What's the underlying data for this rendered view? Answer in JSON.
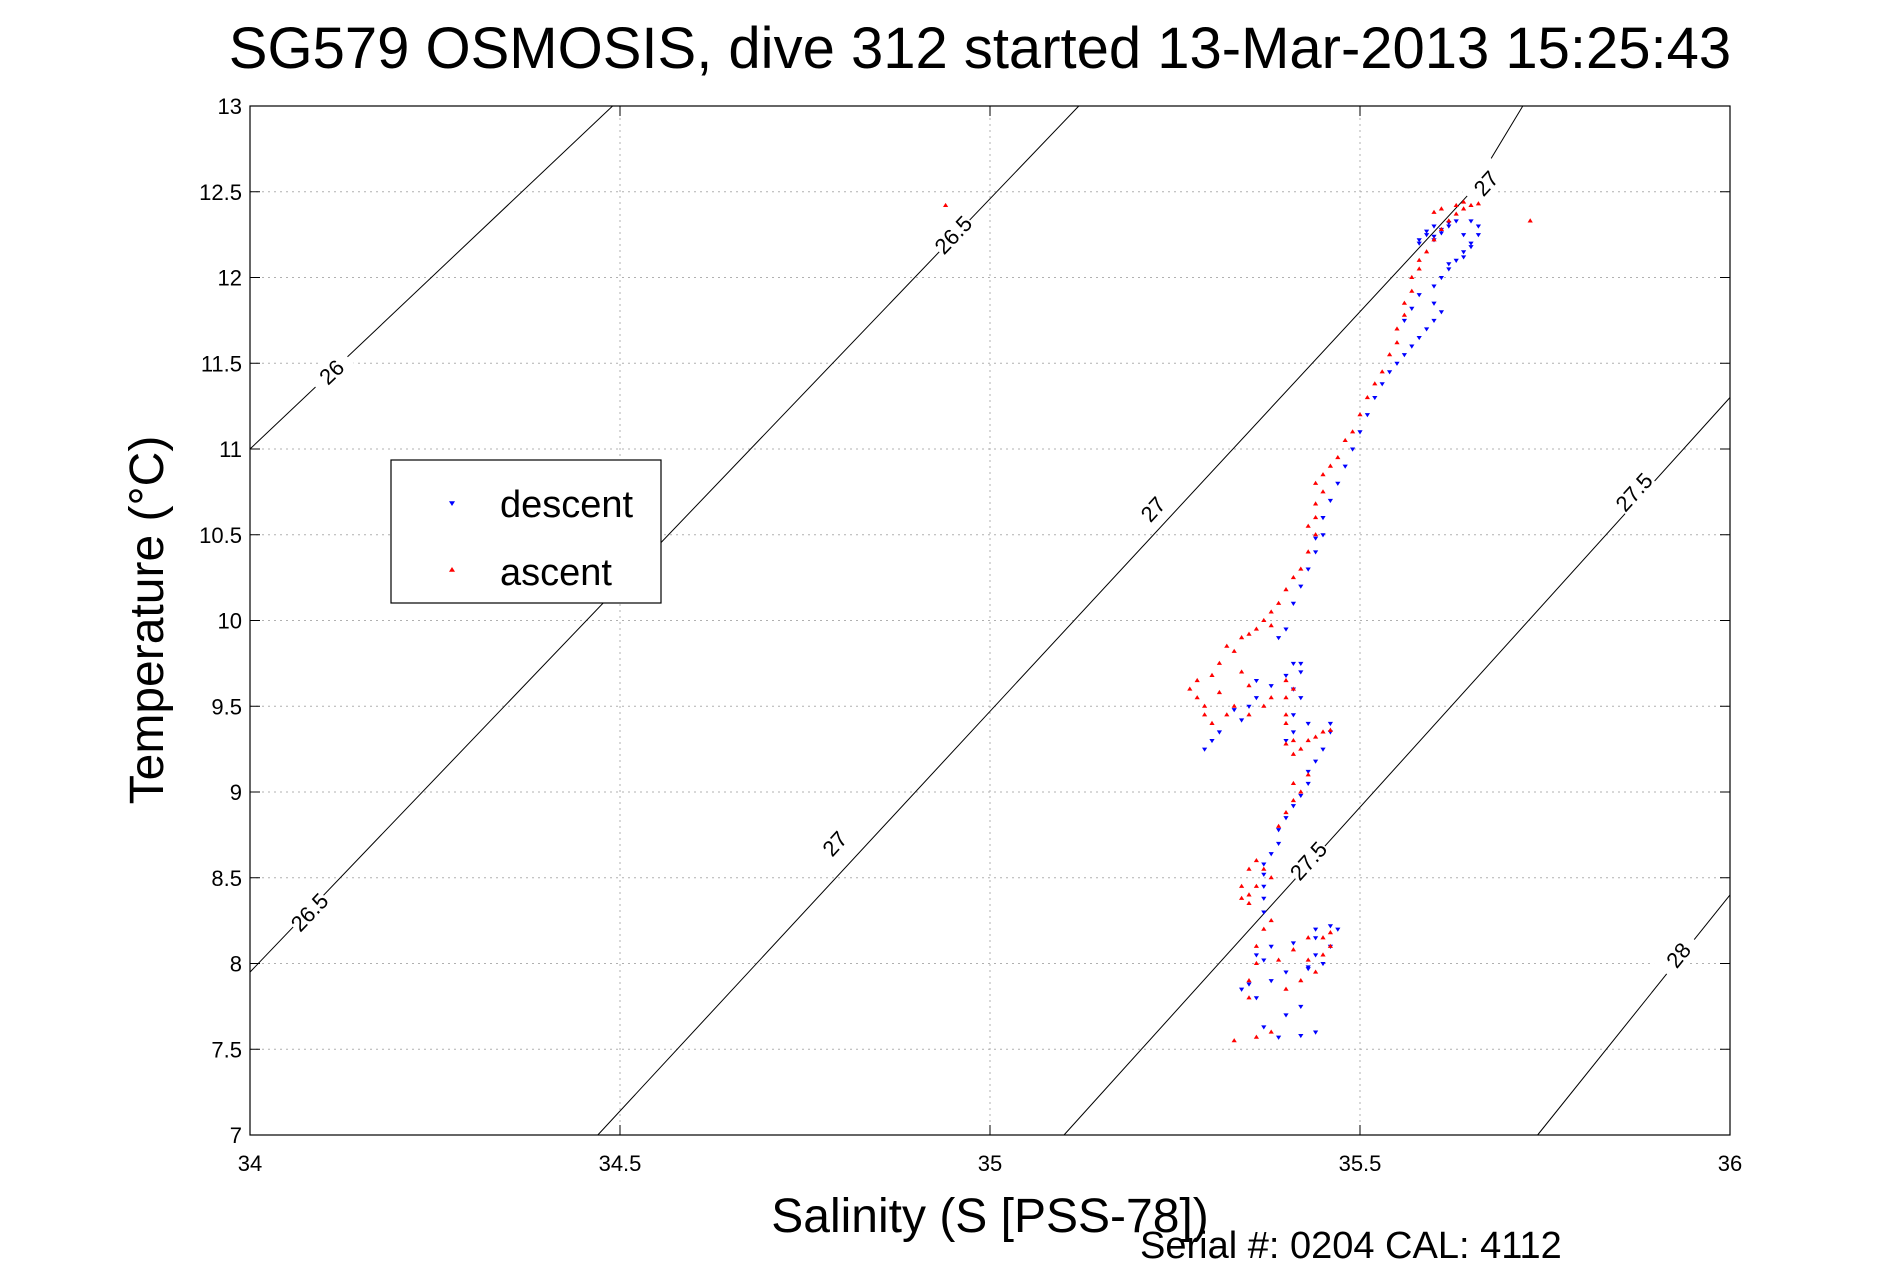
{
  "colors": {
    "descent": "#0000ff",
    "ascent": "#ff0000",
    "contour": "#000000",
    "grid": "#b0b0b0"
  },
  "footer": {
    "serial_text": "Serial #: 0204  CAL: 4112"
  },
  "chart_data": {
    "type": "scatter",
    "title": "SG579 OSMOSIS, dive 312 started 13-Mar-2013 15:25:43",
    "xlabel": "Salinity (S [PSS-78])",
    "ylabel": "Temperature (°C)",
    "xlim": [
      34,
      36
    ],
    "ylim": [
      7,
      13
    ],
    "xticks": [
      34,
      34.5,
      35,
      35.5,
      36
    ],
    "xtick_labels": [
      "34",
      "34.5",
      "35",
      "35.5",
      "36"
    ],
    "yticks": [
      7,
      7.5,
      8,
      8.5,
      9,
      9.5,
      10,
      10.5,
      11,
      11.5,
      12,
      12.5,
      13
    ],
    "ytick_labels": [
      "7",
      "7.5",
      "8",
      "8.5",
      "9",
      "9.5",
      "10",
      "10.5",
      "11",
      "11.5",
      "12",
      "12.5",
      "13"
    ],
    "grid": true,
    "legend_position": "center-left",
    "density_contours": [
      {
        "sigma": 26,
        "points": [
          [
            34,
            11.0
          ],
          [
            34.49,
            13.0
          ]
        ],
        "labels": [
          {
            "text": "26",
            "at": [
              34.11,
              11.45
            ]
          }
        ]
      },
      {
        "sigma": 26.5,
        "points": [
          [
            34,
            7.95
          ],
          [
            35.12,
            13.0
          ]
        ],
        "labels": [
          {
            "text": "26.5",
            "at": [
              34.08,
              8.3
            ]
          },
          {
            "text": "26.5",
            "at": [
              34.95,
              12.25
            ]
          }
        ]
      },
      {
        "sigma": 27,
        "points": [
          [
            34.47,
            7.0
          ],
          [
            35.65,
            12.5
          ],
          [
            35.72,
            13.0
          ]
        ],
        "labels": [
          {
            "text": "27",
            "at": [
              34.79,
              8.7
            ]
          },
          {
            "text": "27",
            "at": [
              35.22,
              10.65
            ]
          },
          {
            "text": "27",
            "at": [
              35.67,
              12.55
            ]
          }
        ]
      },
      {
        "sigma": 27.5,
        "points": [
          [
            35.1,
            7.0
          ],
          [
            36.0,
            11.3
          ]
        ],
        "labels": [
          {
            "text": "27.5",
            "at": [
              35.43,
              8.6
            ]
          },
          {
            "text": "27.5",
            "at": [
              35.87,
              10.75
            ]
          }
        ]
      },
      {
        "sigma": 28,
        "points": [
          [
            35.74,
            7.0
          ],
          [
            36.0,
            8.4
          ]
        ],
        "labels": [
          {
            "text": "28",
            "at": [
              35.93,
              8.05
            ]
          }
        ]
      }
    ],
    "series": [
      {
        "name": "descent",
        "marker": "triangle-down",
        "points": [
          [
            35.39,
            7.57
          ],
          [
            35.42,
            7.58
          ],
          [
            35.44,
            7.6
          ],
          [
            35.37,
            7.63
          ],
          [
            35.4,
            7.7
          ],
          [
            35.42,
            7.75
          ],
          [
            35.34,
            7.85
          ],
          [
            35.36,
            7.8
          ],
          [
            35.35,
            7.88
          ],
          [
            35.38,
            7.9
          ],
          [
            35.4,
            7.95
          ],
          [
            35.43,
            7.98
          ],
          [
            35.37,
            8.02
          ],
          [
            35.36,
            8.05
          ],
          [
            35.38,
            8.1
          ],
          [
            35.41,
            8.12
          ],
          [
            35.44,
            8.15
          ],
          [
            35.47,
            8.2
          ],
          [
            35.46,
            8.22
          ],
          [
            35.44,
            8.2
          ],
          [
            35.46,
            8.1
          ],
          [
            35.44,
            8.05
          ],
          [
            35.43,
            7.97
          ],
          [
            35.45,
            8.0
          ],
          [
            35.37,
            8.3
          ],
          [
            35.37,
            8.38
          ],
          [
            35.37,
            8.45
          ],
          [
            35.37,
            8.52
          ],
          [
            35.37,
            8.58
          ],
          [
            35.38,
            8.64
          ],
          [
            35.39,
            8.7
          ],
          [
            35.39,
            8.78
          ],
          [
            35.4,
            8.85
          ],
          [
            35.41,
            8.92
          ],
          [
            35.42,
            8.98
          ],
          [
            35.43,
            9.05
          ],
          [
            35.43,
            9.12
          ],
          [
            35.44,
            9.18
          ],
          [
            35.45,
            9.25
          ],
          [
            35.46,
            9.35
          ],
          [
            35.46,
            9.4
          ],
          [
            35.43,
            9.4
          ],
          [
            35.41,
            9.35
          ],
          [
            35.4,
            9.3
          ],
          [
            35.41,
            9.45
          ],
          [
            35.42,
            9.55
          ],
          [
            35.41,
            9.6
          ],
          [
            35.42,
            9.7
          ],
          [
            35.41,
            9.75
          ],
          [
            35.42,
            9.75
          ],
          [
            35.4,
            9.68
          ],
          [
            35.38,
            9.62
          ],
          [
            35.36,
            9.55
          ],
          [
            35.35,
            9.5
          ],
          [
            35.34,
            9.42
          ],
          [
            35.31,
            9.35
          ],
          [
            35.29,
            9.25
          ],
          [
            35.3,
            9.3
          ],
          [
            35.33,
            9.48
          ],
          [
            35.36,
            9.65
          ],
          [
            35.39,
            9.9
          ],
          [
            35.4,
            9.95
          ],
          [
            35.41,
            10.1
          ],
          [
            35.42,
            10.2
          ],
          [
            35.43,
            10.3
          ],
          [
            35.44,
            10.4
          ],
          [
            35.45,
            10.5
          ],
          [
            35.44,
            10.48
          ],
          [
            35.45,
            10.6
          ],
          [
            35.46,
            10.7
          ],
          [
            35.47,
            10.8
          ],
          [
            35.48,
            10.9
          ],
          [
            35.49,
            11.0
          ],
          [
            35.5,
            11.1
          ],
          [
            35.51,
            11.2
          ],
          [
            35.52,
            11.3
          ],
          [
            35.53,
            11.38
          ],
          [
            35.54,
            11.45
          ],
          [
            35.55,
            11.5
          ],
          [
            35.56,
            11.55
          ],
          [
            35.57,
            11.6
          ],
          [
            35.58,
            11.65
          ],
          [
            35.59,
            11.7
          ],
          [
            35.6,
            11.75
          ],
          [
            35.61,
            11.8
          ],
          [
            35.6,
            11.85
          ],
          [
            35.57,
            11.82
          ],
          [
            35.56,
            11.75
          ],
          [
            35.58,
            11.9
          ],
          [
            35.6,
            11.95
          ],
          [
            35.61,
            12.0
          ],
          [
            35.62,
            12.05
          ],
          [
            35.63,
            12.1
          ],
          [
            35.64,
            12.15
          ],
          [
            35.65,
            12.2
          ],
          [
            35.66,
            12.25
          ],
          [
            35.66,
            12.3
          ],
          [
            35.65,
            12.33
          ],
          [
            35.63,
            12.33
          ],
          [
            35.62,
            12.32
          ],
          [
            35.6,
            12.3
          ],
          [
            35.59,
            12.27
          ],
          [
            35.6,
            12.24
          ],
          [
            35.58,
            12.2
          ],
          [
            35.6,
            12.22
          ],
          [
            35.61,
            12.26
          ],
          [
            35.62,
            12.3
          ],
          [
            35.64,
            12.25
          ],
          [
            35.65,
            12.18
          ],
          [
            35.64,
            12.12
          ],
          [
            35.62,
            12.08
          ],
          [
            35.59,
            12.25
          ],
          [
            35.58,
            12.22
          ],
          [
            35.61,
            12.28
          ]
        ]
      },
      {
        "name": "ascent",
        "marker": "triangle-up",
        "points": [
          [
            35.33,
            7.55
          ],
          [
            35.36,
            7.57
          ],
          [
            35.38,
            7.6
          ],
          [
            35.35,
            7.8
          ],
          [
            35.35,
            7.9
          ],
          [
            35.36,
            8.0
          ],
          [
            35.36,
            8.1
          ],
          [
            35.37,
            8.2
          ],
          [
            35.38,
            8.25
          ],
          [
            35.4,
            7.85
          ],
          [
            35.42,
            7.9
          ],
          [
            35.44,
            7.95
          ],
          [
            35.45,
            8.05
          ],
          [
            35.46,
            8.1
          ],
          [
            35.43,
            8.15
          ],
          [
            35.41,
            8.08
          ],
          [
            35.39,
            8.02
          ],
          [
            35.43,
            8.02
          ],
          [
            35.45,
            8.15
          ],
          [
            35.46,
            8.18
          ],
          [
            35.35,
            8.35
          ],
          [
            35.35,
            8.4
          ],
          [
            35.36,
            8.45
          ],
          [
            35.37,
            8.55
          ],
          [
            35.36,
            8.6
          ],
          [
            35.35,
            8.55
          ],
          [
            35.34,
            8.45
          ],
          [
            35.34,
            8.38
          ],
          [
            35.38,
            8.5
          ],
          [
            35.39,
            8.8
          ],
          [
            35.4,
            8.88
          ],
          [
            35.41,
            8.95
          ],
          [
            35.42,
            9.0
          ],
          [
            35.43,
            9.1
          ],
          [
            35.41,
            9.05
          ],
          [
            35.42,
            9.25
          ],
          [
            35.41,
            9.3
          ],
          [
            35.4,
            9.28
          ],
          [
            35.41,
            9.22
          ],
          [
            35.43,
            9.3
          ],
          [
            35.44,
            9.32
          ],
          [
            35.45,
            9.35
          ],
          [
            35.46,
            9.36
          ],
          [
            35.4,
            9.4
          ],
          [
            35.4,
            9.45
          ],
          [
            35.4,
            9.55
          ],
          [
            35.41,
            9.6
          ],
          [
            35.4,
            9.65
          ],
          [
            35.38,
            9.55
          ],
          [
            35.37,
            9.5
          ],
          [
            35.35,
            9.45
          ],
          [
            35.33,
            9.5
          ],
          [
            35.32,
            9.45
          ],
          [
            35.3,
            9.4
          ],
          [
            35.28,
            9.55
          ],
          [
            35.27,
            9.6
          ],
          [
            35.28,
            9.65
          ],
          [
            35.29,
            9.5
          ],
          [
            35.3,
            9.68
          ],
          [
            35.31,
            9.75
          ],
          [
            35.32,
            9.85
          ],
          [
            35.34,
            9.9
          ],
          [
            35.35,
            9.92
          ],
          [
            35.36,
            9.95
          ],
          [
            35.38,
            9.97
          ],
          [
            35.33,
            9.82
          ],
          [
            35.31,
            9.58
          ],
          [
            35.29,
            9.45
          ],
          [
            35.34,
            9.7
          ],
          [
            35.35,
            9.62
          ],
          [
            35.37,
            10.0
          ],
          [
            35.38,
            10.05
          ],
          [
            35.39,
            10.1
          ],
          [
            35.4,
            10.18
          ],
          [
            35.41,
            10.25
          ],
          [
            35.42,
            10.3
          ],
          [
            35.43,
            10.4
          ],
          [
            35.44,
            10.5
          ],
          [
            35.43,
            10.55
          ],
          [
            35.44,
            10.6
          ],
          [
            35.44,
            10.68
          ],
          [
            35.45,
            10.75
          ],
          [
            35.44,
            10.8
          ],
          [
            35.45,
            10.85
          ],
          [
            35.46,
            10.9
          ],
          [
            35.47,
            10.95
          ],
          [
            35.48,
            11.05
          ],
          [
            35.49,
            11.1
          ],
          [
            35.5,
            11.2
          ],
          [
            35.51,
            11.3
          ],
          [
            35.52,
            11.38
          ],
          [
            35.53,
            11.45
          ],
          [
            35.54,
            11.55
          ],
          [
            35.55,
            11.62
          ],
          [
            35.55,
            11.7
          ],
          [
            35.56,
            11.78
          ],
          [
            35.56,
            11.85
          ],
          [
            35.57,
            11.92
          ],
          [
            35.57,
            12.0
          ],
          [
            35.58,
            12.05
          ],
          [
            35.58,
            12.1
          ],
          [
            35.59,
            12.15
          ],
          [
            35.6,
            12.22
          ],
          [
            35.61,
            12.28
          ],
          [
            35.62,
            12.33
          ],
          [
            35.63,
            12.37
          ],
          [
            35.64,
            12.4
          ],
          [
            35.65,
            12.42
          ],
          [
            35.66,
            12.43
          ],
          [
            35.64,
            12.44
          ],
          [
            35.63,
            12.42
          ],
          [
            35.61,
            12.4
          ],
          [
            35.6,
            12.38
          ],
          [
            35.73,
            12.33
          ],
          [
            34.94,
            12.42
          ]
        ]
      }
    ]
  }
}
